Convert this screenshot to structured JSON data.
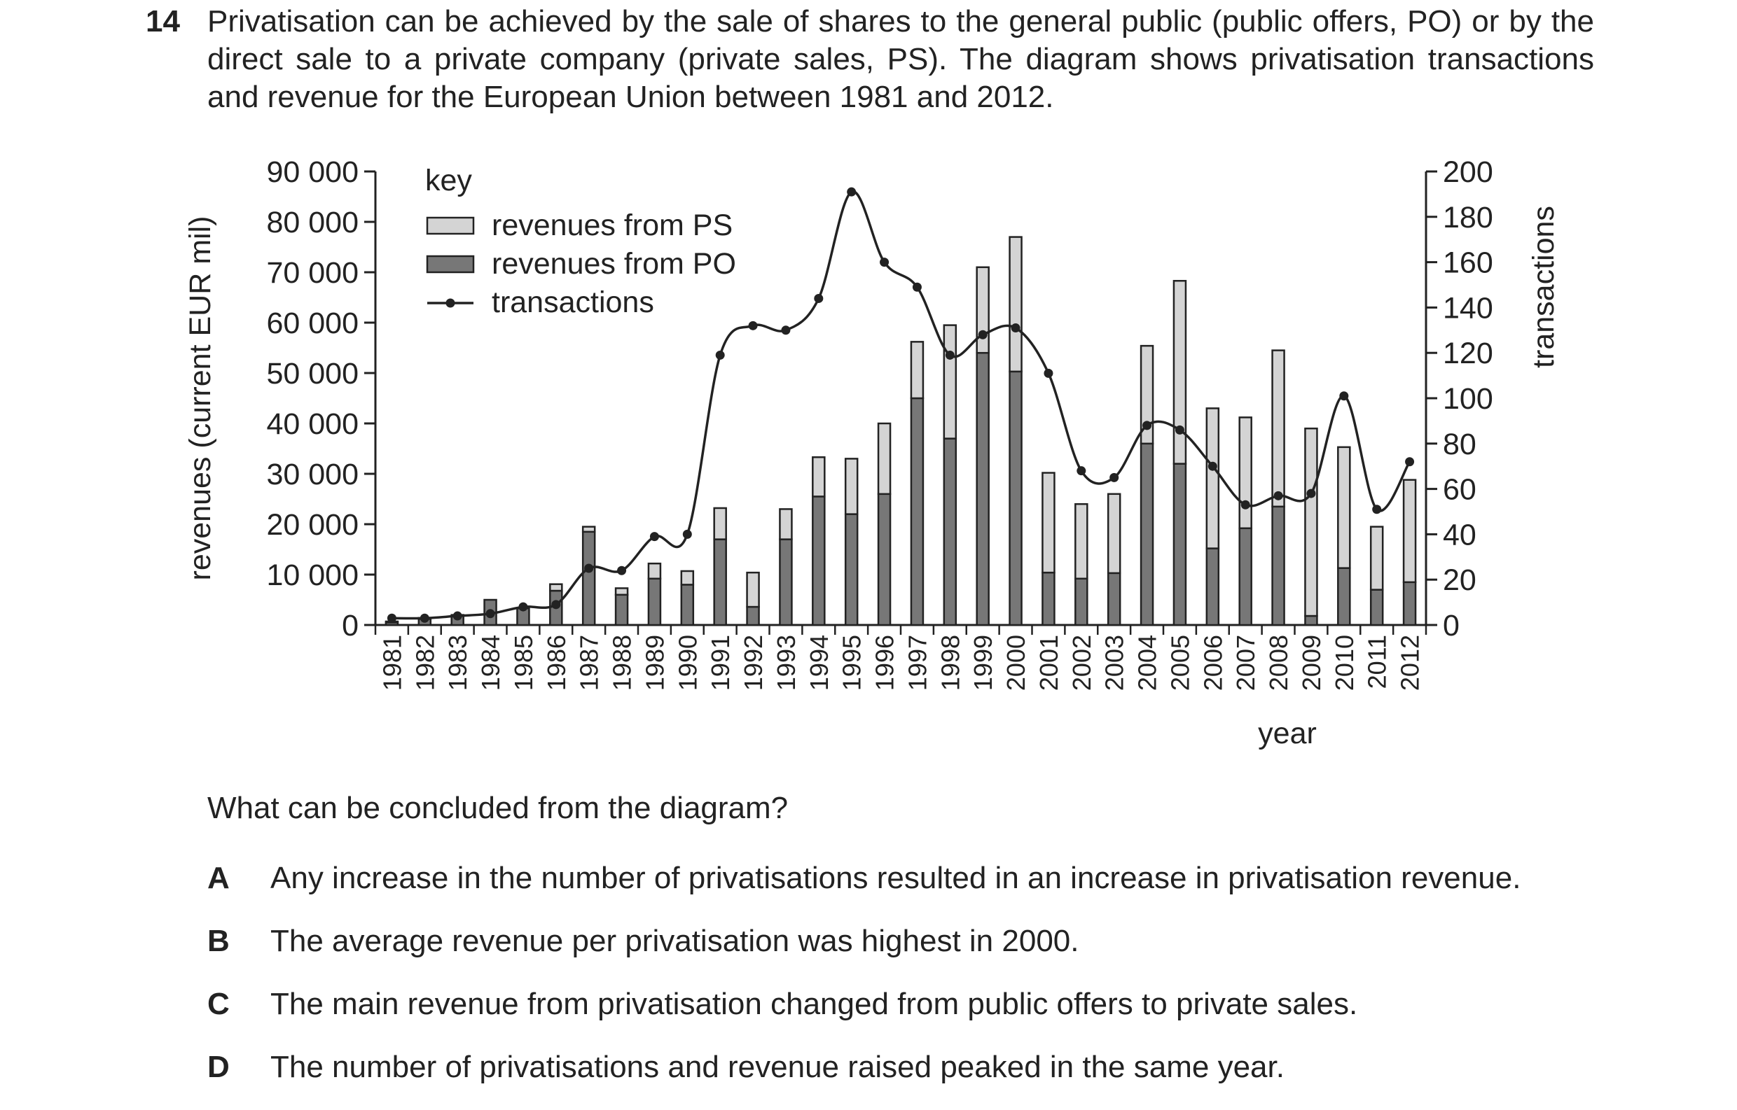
{
  "question": {
    "number": "14",
    "text": "Privatisation can be achieved by the sale of shares to the general public (public offers, PO) or by the direct sale to a private company (private sales, PS). The diagram shows privatisation transactions and revenue for the European Union between 1981 and 2012."
  },
  "chart_data": {
    "type": "bar",
    "stacked": true,
    "xlabel": "year",
    "ylabel_left": "revenues (current EUR mil)",
    "ylabel_right": "transactions",
    "ylim_left": [
      0,
      90000
    ],
    "yticks_left": [
      "0",
      "10 000",
      "20 000",
      "30 000",
      "40 000",
      "50 000",
      "60 000",
      "70 000",
      "80 000",
      "90 000"
    ],
    "ylim_right": [
      0,
      200
    ],
    "yticks_right": [
      "0",
      "20",
      "40",
      "60",
      "80",
      "100",
      "120",
      "140",
      "160",
      "180",
      "200"
    ],
    "legend_title": "key",
    "legend_position": "top-left",
    "categories": [
      "1981",
      "1982",
      "1983",
      "1984",
      "1985",
      "1986",
      "1987",
      "1988",
      "1989",
      "1990",
      "1991",
      "1992",
      "1993",
      "1994",
      "1995",
      "1996",
      "1997",
      "1998",
      "1999",
      "2000",
      "2001",
      "2002",
      "2003",
      "2004",
      "2005",
      "2006",
      "2007",
      "2008",
      "2009",
      "2010",
      "2011",
      "2012"
    ],
    "series": [
      {
        "name": "revenues from PO",
        "type": "bar",
        "axis": "left",
        "color": "#777777",
        "values": [
          500,
          1200,
          1800,
          5000,
          3300,
          6800,
          18500,
          6000,
          9200,
          8000,
          17000,
          3600,
          17000,
          25500,
          22000,
          26000,
          45000,
          37000,
          54000,
          50300,
          10400,
          9200,
          10300,
          36000,
          32000,
          15200,
          19200,
          23500,
          1800,
          11300,
          7000,
          8500
        ]
      },
      {
        "name": "revenues from PS",
        "type": "bar",
        "axis": "left",
        "color": "#d4d4d4",
        "values": [
          200,
          200,
          200,
          0,
          0,
          1300,
          1000,
          1300,
          3000,
          2700,
          6200,
          6800,
          6000,
          7800,
          11000,
          14000,
          11200,
          22500,
          17000,
          26700,
          19800,
          14800,
          15700,
          19400,
          36300,
          27800,
          22000,
          31000,
          37200,
          24000,
          12500,
          20300
        ]
      },
      {
        "name": "transactions",
        "type": "line",
        "axis": "right",
        "color": "#222222",
        "values": [
          3,
          3,
          4,
          5,
          8,
          9,
          25,
          24,
          39,
          40,
          119,
          132,
          130,
          144,
          191,
          160,
          149,
          119,
          128,
          131,
          111,
          68,
          65,
          88,
          86,
          70,
          53,
          57,
          58,
          101,
          51,
          72
        ]
      }
    ]
  },
  "answer_prompt": "What can be concluded from the diagram?",
  "options": [
    {
      "letter": "A",
      "text": "Any increase in the number of privatisations resulted in an increase in privatisation revenue."
    },
    {
      "letter": "B",
      "text": "The average revenue per privatisation was highest in 2000."
    },
    {
      "letter": "C",
      "text": "The main revenue from privatisation changed from public offers to private sales."
    },
    {
      "letter": "D",
      "text": "The number of privatisations and revenue raised peaked in the same year."
    }
  ]
}
